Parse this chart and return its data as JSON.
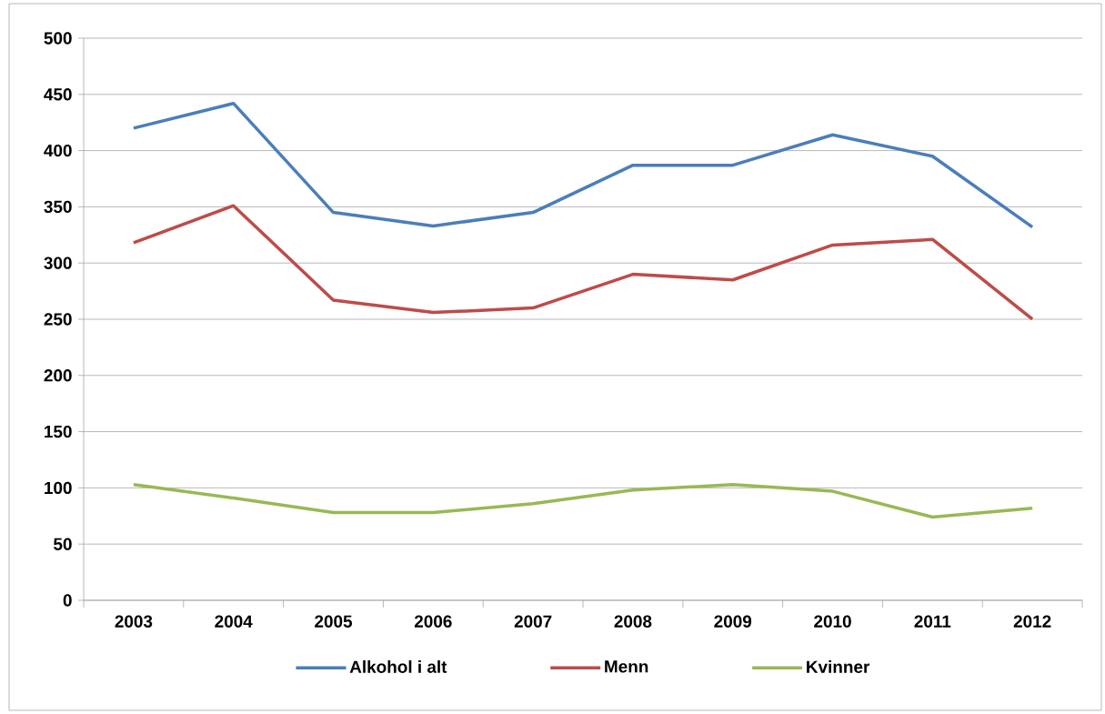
{
  "chart_data": {
    "type": "line",
    "categories": [
      "2003",
      "2004",
      "2005",
      "2006",
      "2007",
      "2008",
      "2009",
      "2010",
      "2011",
      "2012"
    ],
    "series": [
      {
        "name": "Alkohol i alt",
        "color": "#4a7ebb",
        "values": [
          420,
          442,
          345,
          333,
          345,
          387,
          387,
          414,
          395,
          332
        ]
      },
      {
        "name": "Menn",
        "color": "#be4b48",
        "values": [
          318,
          351,
          267,
          256,
          260,
          290,
          285,
          316,
          321,
          250
        ]
      },
      {
        "name": "Kvinner",
        "color": "#98b954",
        "values": [
          103,
          91,
          78,
          78,
          86,
          98,
          103,
          97,
          74,
          82
        ]
      }
    ],
    "ylim": [
      0,
      500
    ],
    "yticks": [
      0,
      50,
      100,
      150,
      200,
      250,
      300,
      350,
      400,
      450,
      500
    ],
    "grid": "y",
    "legend": "bottom",
    "marker": "none",
    "line_style": "solid"
  }
}
